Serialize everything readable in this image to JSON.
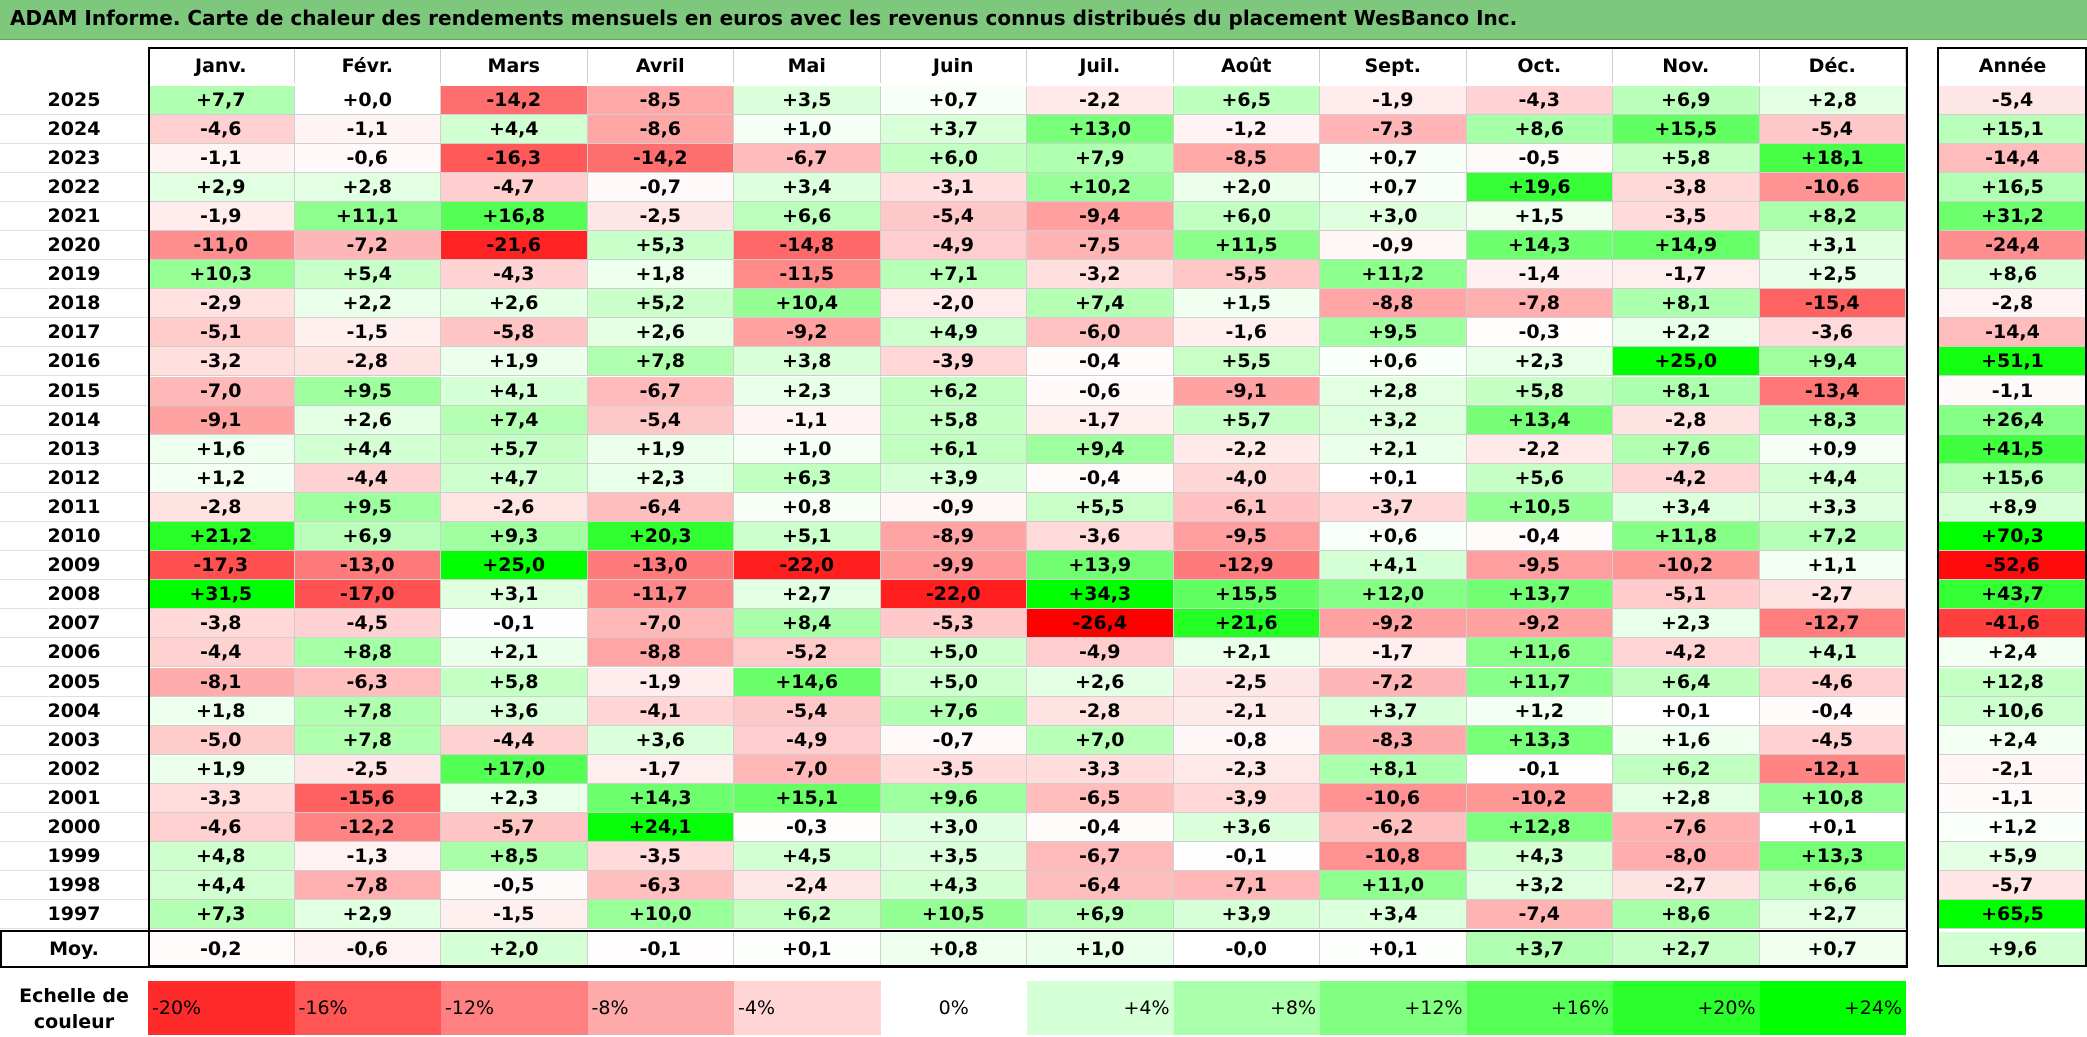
{
  "title": "ADAM Informe. Carte de chaleur des rendements mensuels en euros avec les revenus connus distribués du placement WesBanco Inc.",
  "chart_data": {
    "type": "heatmap",
    "title": "ADAM Informe. Carte de chaleur des rendements mensuels en euros avec les revenus connus distribués du placement WesBanco Inc.",
    "columns": [
      "Janv.",
      "Févr.",
      "Mars",
      "Avril",
      "Mai",
      "Juin",
      "Juil.",
      "Août",
      "Sept.",
      "Oct.",
      "Nov.",
      "Déc."
    ],
    "year_column_label": "Année",
    "rows": [
      {
        "year": "2025",
        "values": [
          "+7,7",
          "+0,0",
          "-14,2",
          "-8,5",
          "+3,5",
          "+0,7",
          "-2,2",
          "+6,5",
          "-1,9",
          "-4,3",
          "+6,9",
          "+2,8"
        ],
        "annual": "-5,4"
      },
      {
        "year": "2024",
        "values": [
          "-4,6",
          "-1,1",
          "+4,4",
          "-8,6",
          "+1,0",
          "+3,7",
          "+13,0",
          "-1,2",
          "-7,3",
          "+8,6",
          "+15,5",
          "-5,4"
        ],
        "annual": "+15,1"
      },
      {
        "year": "2023",
        "values": [
          "-1,1",
          "-0,6",
          "-16,3",
          "-14,2",
          "-6,7",
          "+6,0",
          "+7,9",
          "-8,5",
          "+0,7",
          "-0,5",
          "+5,8",
          "+18,1"
        ],
        "annual": "-14,4"
      },
      {
        "year": "2022",
        "values": [
          "+2,9",
          "+2,8",
          "-4,7",
          "-0,7",
          "+3,4",
          "-3,1",
          "+10,2",
          "+2,0",
          "+0,7",
          "+19,6",
          "-3,8",
          "-10,6"
        ],
        "annual": "+16,5"
      },
      {
        "year": "2021",
        "values": [
          "-1,9",
          "+11,1",
          "+16,8",
          "-2,5",
          "+6,6",
          "-5,4",
          "-9,4",
          "+6,0",
          "+3,0",
          "+1,5",
          "-3,5",
          "+8,2"
        ],
        "annual": "+31,2"
      },
      {
        "year": "2020",
        "values": [
          "-11,0",
          "-7,2",
          "-21,6",
          "+5,3",
          "-14,8",
          "-4,9",
          "-7,5",
          "+11,5",
          "-0,9",
          "+14,3",
          "+14,9",
          "+3,1"
        ],
        "annual": "-24,4"
      },
      {
        "year": "2019",
        "values": [
          "+10,3",
          "+5,4",
          "-4,3",
          "+1,8",
          "-11,5",
          "+7,1",
          "-3,2",
          "-5,5",
          "+11,2",
          "-1,4",
          "-1,7",
          "+2,5"
        ],
        "annual": "+8,6"
      },
      {
        "year": "2018",
        "values": [
          "-2,9",
          "+2,2",
          "+2,6",
          "+5,2",
          "+10,4",
          "-2,0",
          "+7,4",
          "+1,5",
          "-8,8",
          "-7,8",
          "+8,1",
          "-15,4"
        ],
        "annual": "-2,8"
      },
      {
        "year": "2017",
        "values": [
          "-5,1",
          "-1,5",
          "-5,8",
          "+2,6",
          "-9,2",
          "+4,9",
          "-6,0",
          "-1,6",
          "+9,5",
          "-0,3",
          "+2,2",
          "-3,6"
        ],
        "annual": "-14,4"
      },
      {
        "year": "2016",
        "values": [
          "-3,2",
          "-2,8",
          "+1,9",
          "+7,8",
          "+3,8",
          "-3,9",
          "-0,4",
          "+5,5",
          "+0,6",
          "+2,3",
          "+25,0",
          "+9,4"
        ],
        "annual": "+51,1"
      },
      {
        "year": "2015",
        "values": [
          "-7,0",
          "+9,5",
          "+4,1",
          "-6,7",
          "+2,3",
          "+6,2",
          "-0,6",
          "-9,1",
          "+2,8",
          "+5,8",
          "+8,1",
          "-13,4"
        ],
        "annual": "-1,1"
      },
      {
        "year": "2014",
        "values": [
          "-9,1",
          "+2,6",
          "+7,4",
          "-5,4",
          "-1,1",
          "+5,8",
          "-1,7",
          "+5,7",
          "+3,2",
          "+13,4",
          "-2,8",
          "+8,3"
        ],
        "annual": "+26,4"
      },
      {
        "year": "2013",
        "values": [
          "+1,6",
          "+4,4",
          "+5,7",
          "+1,9",
          "+1,0",
          "+6,1",
          "+9,4",
          "-2,2",
          "+2,1",
          "-2,2",
          "+7,6",
          "+0,9"
        ],
        "annual": "+41,5"
      },
      {
        "year": "2012",
        "values": [
          "+1,2",
          "-4,4",
          "+4,7",
          "+2,3",
          "+6,3",
          "+3,9",
          "-0,4",
          "-4,0",
          "+0,1",
          "+5,6",
          "-4,2",
          "+4,4"
        ],
        "annual": "+15,6"
      },
      {
        "year": "2011",
        "values": [
          "-2,8",
          "+9,5",
          "-2,6",
          "-6,4",
          "+0,8",
          "-0,9",
          "+5,5",
          "-6,1",
          "-3,7",
          "+10,5",
          "+3,4",
          "+3,3"
        ],
        "annual": "+8,9"
      },
      {
        "year": "2010",
        "values": [
          "+21,2",
          "+6,9",
          "+9,3",
          "+20,3",
          "+5,1",
          "-8,9",
          "-3,6",
          "-9,5",
          "+0,6",
          "-0,4",
          "+11,8",
          "+7,2"
        ],
        "annual": "+70,3"
      },
      {
        "year": "2009",
        "values": [
          "-17,3",
          "-13,0",
          "+25,0",
          "-13,0",
          "-22,0",
          "-9,9",
          "+13,9",
          "-12,9",
          "+4,1",
          "-9,5",
          "-10,2",
          "+1,1"
        ],
        "annual": "-52,6"
      },
      {
        "year": "2008",
        "values": [
          "+31,5",
          "-17,0",
          "+3,1",
          "-11,7",
          "+2,7",
          "-22,0",
          "+34,3",
          "+15,5",
          "+12,0",
          "+13,7",
          "-5,1",
          "-2,7"
        ],
        "annual": "+43,7"
      },
      {
        "year": "2007",
        "values": [
          "-3,8",
          "-4,5",
          "-0,1",
          "-7,0",
          "+8,4",
          "-5,3",
          "-26,4",
          "+21,6",
          "-9,2",
          "-9,2",
          "+2,3",
          "-12,7"
        ],
        "annual": "-41,6"
      },
      {
        "year": "2006",
        "values": [
          "-4,4",
          "+8,8",
          "+2,1",
          "-8,8",
          "-5,2",
          "+5,0",
          "-4,9",
          "+2,1",
          "-1,7",
          "+11,6",
          "-4,2",
          "+4,1"
        ],
        "annual": "+2,4"
      },
      {
        "year": "2005",
        "values": [
          "-8,1",
          "-6,3",
          "+5,8",
          "-1,9",
          "+14,6",
          "+5,0",
          "+2,6",
          "-2,5",
          "-7,2",
          "+11,7",
          "+6,4",
          "-4,6"
        ],
        "annual": "+12,8"
      },
      {
        "year": "2004",
        "values": [
          "+1,8",
          "+7,8",
          "+3,6",
          "-4,1",
          "-5,4",
          "+7,6",
          "-2,8",
          "-2,1",
          "+3,7",
          "+1,2",
          "+0,1",
          "-0,4"
        ],
        "annual": "+10,6"
      },
      {
        "year": "2003",
        "values": [
          "-5,0",
          "+7,8",
          "-4,4",
          "+3,6",
          "-4,9",
          "-0,7",
          "+7,0",
          "-0,8",
          "-8,3",
          "+13,3",
          "+1,6",
          "-4,5"
        ],
        "annual": "+2,4"
      },
      {
        "year": "2002",
        "values": [
          "+1,9",
          "-2,5",
          "+17,0",
          "-1,7",
          "-7,0",
          "-3,5",
          "-3,3",
          "-2,3",
          "+8,1",
          "-0,1",
          "+6,2",
          "-12,1"
        ],
        "annual": "-2,1"
      },
      {
        "year": "2001",
        "values": [
          "-3,3",
          "-15,6",
          "+2,3",
          "+14,3",
          "+15,1",
          "+9,6",
          "-6,5",
          "-3,9",
          "-10,6",
          "-10,2",
          "+2,8",
          "+10,8"
        ],
        "annual": "-1,1"
      },
      {
        "year": "2000",
        "values": [
          "-4,6",
          "-12,2",
          "-5,7",
          "+24,1",
          "-0,3",
          "+3,0",
          "-0,4",
          "+3,6",
          "-6,2",
          "+12,8",
          "-7,6",
          "+0,1"
        ],
        "annual": "+1,2"
      },
      {
        "year": "1999",
        "values": [
          "+4,8",
          "-1,3",
          "+8,5",
          "-3,5",
          "+4,5",
          "+3,5",
          "-6,7",
          "-0,1",
          "-10,8",
          "+4,3",
          "-8,0",
          "+13,3"
        ],
        "annual": "+5,9"
      },
      {
        "year": "1998",
        "values": [
          "+4,4",
          "-7,8",
          "-0,5",
          "-6,3",
          "-2,4",
          "+4,3",
          "-6,4",
          "-7,1",
          "+11,0",
          "+3,2",
          "-2,7",
          "+6,6"
        ],
        "annual": "-5,7"
      },
      {
        "year": "1997",
        "values": [
          "+7,3",
          "+2,9",
          "-1,5",
          "+10,0",
          "+6,2",
          "+10,5",
          "+6,9",
          "+3,9",
          "+3,4",
          "-7,4",
          "+8,6",
          "+2,7"
        ],
        "annual": "+65,5"
      }
    ],
    "average": {
      "label": "Moy.",
      "values": [
        "-0,2",
        "-0,6",
        "+2,0",
        "-0,1",
        "+0,1",
        "+0,8",
        "+1,0",
        "-0,0",
        "+0,1",
        "+3,7",
        "+2,7",
        "+0,7"
      ],
      "annual": "+9,6"
    },
    "color_scale": {
      "title": "Echelle de couleur",
      "stops": [
        "-20%",
        "-16%",
        "-12%",
        "-8%",
        "-4%",
        "0%",
        "+4%",
        "+8%",
        "+12%",
        "+16%",
        "+20%",
        "+24%"
      ]
    },
    "colors": {
      "negative": "#ff0000",
      "neutral": "#ffffff",
      "positive": "#00ff00",
      "title_bar": "#7dc87d"
    }
  }
}
